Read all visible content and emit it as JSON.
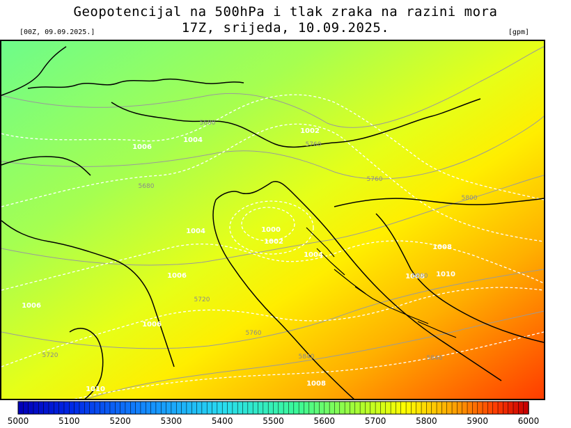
{
  "title": {
    "line1": "Geopotencijal na 500hPa i tlak zraka na razini mora",
    "line2": "17Z, srijeda, 10.09.2025.",
    "run": "[00Z, 09.09.2025.]",
    "unit": "[gpm]"
  },
  "colors": {
    "low": "#0000b8",
    "mid": "#33e0e6",
    "green": "#7cff6a",
    "yellow": "#ffff00",
    "orange": "#ff9900",
    "high": "#ff2200",
    "isobar": "#ffffff",
    "contour_gray": "#9a9a9a",
    "coast": "#000000"
  },
  "colorbar": {
    "min": 5000,
    "max": 6000,
    "steps": 100,
    "ticks": [
      "5000",
      "5100",
      "5200",
      "5300",
      "5400",
      "5500",
      "5600",
      "5700",
      "5800",
      "5900",
      "6000"
    ]
  },
  "isobar_labels": [
    "1002",
    "1004",
    "1006",
    "1006",
    "1006",
    "1006",
    "1008",
    "1010",
    "1000",
    "1002",
    "1004",
    "1004",
    "1008",
    "1008",
    "1010"
  ],
  "geopotential_labels": [
    "5680",
    "5680",
    "5720",
    "5720",
    "5760",
    "5760",
    "5760",
    "5800",
    "5800",
    "5840",
    "5840"
  ]
}
